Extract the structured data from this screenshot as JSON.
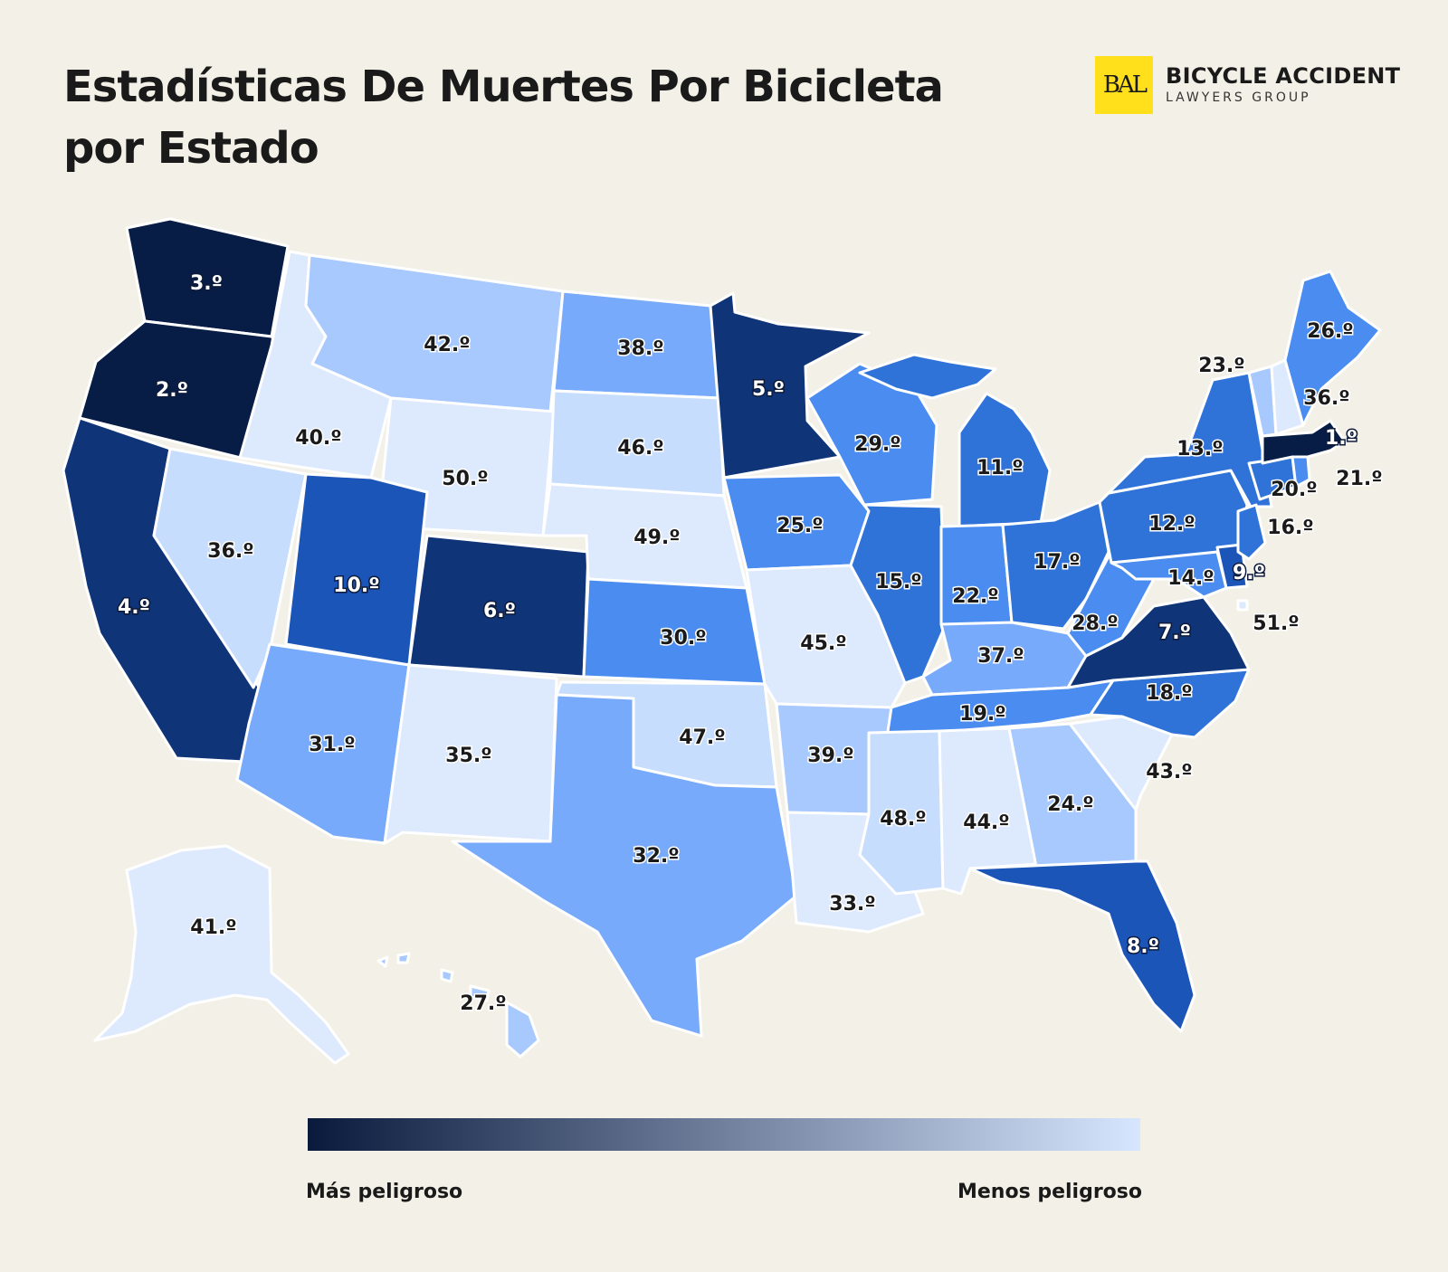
{
  "title": "Estadísticas De Muertes Por Bicicleta por Estado",
  "brand": {
    "logo_text": "BAL",
    "name": "BICYCLE ACCIDENT",
    "subtitle": "LAWYERS GROUP"
  },
  "legend": {
    "left_label": "Más peligroso",
    "right_label": "Menos peligroso",
    "color_high": "#0a1a3c",
    "color_low": "#d6e6fe"
  },
  "colors": {
    "background": "#f3f1e7",
    "tier_colors": [
      "#081d45",
      "#0f3478",
      "#1c55b8",
      "#2f73d9",
      "#4a8cf0",
      "#78aafb",
      "#a7c9fe",
      "#c7ddfe",
      "#dde9fd"
    ]
  },
  "states": [
    {
      "code": "WA",
      "rank": "3.º",
      "tier": 0
    },
    {
      "code": "OR",
      "rank": "2.º",
      "tier": 0
    },
    {
      "code": "CA",
      "rank": "4.º",
      "tier": 1
    },
    {
      "code": "ID",
      "rank": "40.º",
      "tier": 8
    },
    {
      "code": "NV",
      "rank": "36.º",
      "tier": 7
    },
    {
      "code": "MT",
      "rank": "42.º",
      "tier": 6
    },
    {
      "code": "WY",
      "rank": "50.º",
      "tier": 8
    },
    {
      "code": "UT",
      "rank": "10.º",
      "tier": 2
    },
    {
      "code": "CO",
      "rank": "6.º",
      "tier": 1
    },
    {
      "code": "AZ",
      "rank": "31.º",
      "tier": 5
    },
    {
      "code": "NM",
      "rank": "35.º",
      "tier": 8
    },
    {
      "code": "ND",
      "rank": "38.º",
      "tier": 5
    },
    {
      "code": "SD",
      "rank": "46.º",
      "tier": 7
    },
    {
      "code": "NE",
      "rank": "49.º",
      "tier": 8
    },
    {
      "code": "KS",
      "rank": "30.º",
      "tier": 4
    },
    {
      "code": "OK",
      "rank": "47.º",
      "tier": 7
    },
    {
      "code": "TX",
      "rank": "32.º",
      "tier": 5
    },
    {
      "code": "MN",
      "rank": "5.º",
      "tier": 1
    },
    {
      "code": "IA",
      "rank": "25.º",
      "tier": 4
    },
    {
      "code": "MO",
      "rank": "45.º",
      "tier": 8
    },
    {
      "code": "AR",
      "rank": "39.º",
      "tier": 6
    },
    {
      "code": "LA",
      "rank": "33.º",
      "tier": 8
    },
    {
      "code": "WI",
      "rank": "29.º",
      "tier": 4
    },
    {
      "code": "IL",
      "rank": "15.º",
      "tier": 3
    },
    {
      "code": "MI",
      "rank": "11.º",
      "tier": 3
    },
    {
      "code": "IN",
      "rank": "22.º",
      "tier": 4
    },
    {
      "code": "OH",
      "rank": "17.º",
      "tier": 3
    },
    {
      "code": "KY",
      "rank": "37.º",
      "tier": 5
    },
    {
      "code": "TN",
      "rank": "19.º",
      "tier": 4
    },
    {
      "code": "MS",
      "rank": "48.º",
      "tier": 7
    },
    {
      "code": "AL",
      "rank": "44.º",
      "tier": 8
    },
    {
      "code": "GA",
      "rank": "24.º",
      "tier": 6
    },
    {
      "code": "FL",
      "rank": "8.º",
      "tier": 2
    },
    {
      "code": "SC",
      "rank": "43.º",
      "tier": 8
    },
    {
      "code": "NC",
      "rank": "18.º",
      "tier": 3
    },
    {
      "code": "VA",
      "rank": "7.º",
      "tier": 1
    },
    {
      "code": "WV",
      "rank": "28.º",
      "tier": 4
    },
    {
      "code": "PA",
      "rank": "12.º",
      "tier": 3
    },
    {
      "code": "NY",
      "rank": "13.º",
      "tier": 3
    },
    {
      "code": "MD",
      "rank": "14.º",
      "tier": 4
    },
    {
      "code": "DE",
      "rank": "9.º",
      "tier": 2
    },
    {
      "code": "NJ",
      "rank": "16.º",
      "tier": 3
    },
    {
      "code": "CT",
      "rank": "20.º",
      "tier": 3
    },
    {
      "code": "RI",
      "rank": "21.º",
      "tier": 4
    },
    {
      "code": "MA",
      "rank": "1.º",
      "tier": 0
    },
    {
      "code": "VT",
      "rank": "23.º",
      "tier": 6
    },
    {
      "code": "NH",
      "rank": "36.º",
      "tier": 8
    },
    {
      "code": "ME",
      "rank": "26.º",
      "tier": 4
    },
    {
      "code": "DC",
      "rank": "51.º",
      "tier": 8
    },
    {
      "code": "AK",
      "rank": "41.º",
      "tier": 8
    },
    {
      "code": "HI",
      "rank": "27.º",
      "tier": 6
    }
  ]
}
